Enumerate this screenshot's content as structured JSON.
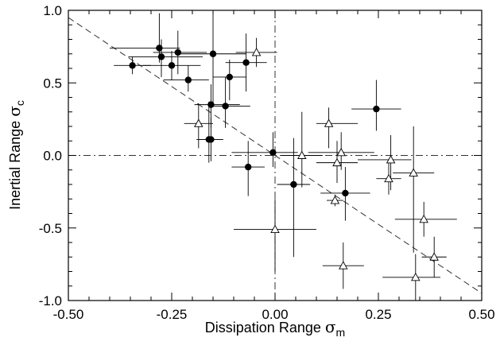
{
  "chart_data": {
    "type": "scatter",
    "title": "",
    "xlabel": "Dissipation Range",
    "xlabel_symbol": "σ",
    "xlabel_subscript": "m",
    "ylabel": "Inertial Range",
    "ylabel_symbol": "σ",
    "ylabel_subscript": "c",
    "xlim": [
      -0.5,
      0.5
    ],
    "ylim": [
      -1.0,
      1.0
    ],
    "xticks": [
      -0.5,
      -0.25,
      0.0,
      0.25,
      0.5
    ],
    "xtick_labels": [
      "-0.50",
      "-0.25",
      "0.00",
      "0.25",
      "0.50"
    ],
    "yticks": [
      -1.0,
      -0.5,
      0.0,
      0.5,
      1.0
    ],
    "ytick_labels": [
      "-1.0",
      "-0.5",
      "0.0",
      "0.5",
      "1.0"
    ],
    "grid": false,
    "reference_lines": [
      {
        "type": "vertical",
        "x": 0.0,
        "style": "dash-dot"
      },
      {
        "type": "horizontal",
        "y": 0.0,
        "style": "dash-dot"
      },
      {
        "type": "diagonal",
        "slope": -1.9,
        "intercept": 0.0,
        "style": "dashed"
      }
    ],
    "series": [
      {
        "marker": "filled-circle",
        "points": [
          {
            "x": -0.345,
            "y": 0.62,
            "xerr": [
              0.045,
              0.045
            ],
            "yerr": [
              0.06,
              0.06
            ]
          },
          {
            "x": -0.28,
            "y": 0.74,
            "xerr": [
              0.12,
              0.05
            ],
            "yerr": [
              0.1,
              0.24
            ]
          },
          {
            "x": -0.275,
            "y": 0.68,
            "xerr": [
              0.08,
              0.1
            ],
            "yerr": [
              0.14,
              0.12
            ]
          },
          {
            "x": -0.25,
            "y": 0.62,
            "xerr": [
              0.07,
              0.07
            ],
            "yerr": [
              0.1,
              0.1
            ]
          },
          {
            "x": -0.235,
            "y": 0.71,
            "xerr": [
              0.06,
              0.07
            ],
            "yerr": [
              0.15,
              0.15
            ]
          },
          {
            "x": -0.21,
            "y": 0.52,
            "xerr": [
              0.06,
              0.05
            ],
            "yerr": [
              0.08,
              0.1
            ]
          },
          {
            "x": -0.15,
            "y": 0.7,
            "xerr": [
              0.08,
              0.08
            ],
            "yerr": [
              0.35,
              0.3
            ]
          },
          {
            "x": -0.11,
            "y": 0.54,
            "xerr": [
              0.04,
              0.04
            ],
            "yerr": [
              0.16,
              0.12
            ]
          },
          {
            "x": -0.07,
            "y": 0.64,
            "xerr": [
              0.05,
              0.05
            ],
            "yerr": [
              0.2,
              0.2
            ]
          },
          {
            "x": -0.155,
            "y": 0.35,
            "xerr": [
              0.04,
              0.07
            ],
            "yerr": [
              0.16,
              0.14
            ]
          },
          {
            "x": -0.12,
            "y": 0.34,
            "xerr": [
              0.04,
              0.06
            ],
            "yerr": [
              0.15,
              0.2
            ]
          },
          {
            "x": -0.155,
            "y": 0.11,
            "xerr": [
              0.03,
              0.03
            ],
            "yerr": [
              0.15,
              0.15
            ]
          },
          {
            "x": -0.16,
            "y": 0.11,
            "xerr": [
              0.03,
              0.03
            ],
            "yerr": [
              0.16,
              0.26
            ]
          },
          {
            "x": -0.065,
            "y": -0.08,
            "xerr": [
              0.04,
              0.04
            ],
            "yerr": [
              0.2,
              0.18
            ]
          },
          {
            "x": -0.005,
            "y": 0.02,
            "xerr": [
              0.1,
              0.06
            ],
            "yerr": [
              0.1,
              0.14
            ]
          },
          {
            "x": 0.045,
            "y": -0.2,
            "xerr": [
              0.04,
              0.04
            ],
            "yerr": [
              0.5,
              0.32
            ]
          },
          {
            "x": 0.17,
            "y": -0.26,
            "xerr": [
              0.06,
              0.06
            ],
            "yerr": [
              0.19,
              0.18
            ]
          },
          {
            "x": 0.245,
            "y": 0.32,
            "xerr": [
              0.06,
              0.06
            ],
            "yerr": [
              0.15,
              0.2
            ]
          }
        ]
      },
      {
        "marker": "open-triangle",
        "points": [
          {
            "x": -0.045,
            "y": 0.71,
            "xerr": [
              0.05,
              0.05
            ],
            "yerr": [
              0.1,
              0.1
            ]
          },
          {
            "x": -0.185,
            "y": 0.22,
            "xerr": [
              0.035,
              0.035
            ],
            "yerr": [
              0.17,
              0.14
            ]
          },
          {
            "x": 0.0,
            "y": -0.51,
            "xerr": [
              0.1,
              0.1
            ],
            "yerr": [
              0.29,
              0.21
            ]
          },
          {
            "x": 0.065,
            "y": 0.0,
            "xerr": [
              0.05,
              0.05
            ],
            "yerr": [
              0.22,
              0.3
            ]
          },
          {
            "x": 0.13,
            "y": 0.22,
            "xerr": [
              0.03,
              0.07
            ],
            "yerr": [
              0.17,
              0.11
            ]
          },
          {
            "x": 0.15,
            "y": -0.05,
            "xerr": [
              0.05,
              0.05
            ],
            "yerr": [
              0.14,
              0.15
            ]
          },
          {
            "x": 0.16,
            "y": 0.02,
            "xerr": [
              0.08,
              0.08
            ],
            "yerr": [
              0.12,
              0.14
            ]
          },
          {
            "x": 0.145,
            "y": -0.31,
            "xerr": [
              0.02,
              0.02
            ],
            "yerr": [
              0.04,
              0.04
            ]
          },
          {
            "x": 0.165,
            "y": -0.76,
            "xerr": [
              0.05,
              0.05
            ],
            "yerr": [
              0.16,
              0.16
            ]
          },
          {
            "x": 0.28,
            "y": -0.03,
            "xerr": [
              0.08,
              0.05
            ],
            "yerr": [
              0.21,
              0.17
            ]
          },
          {
            "x": 0.275,
            "y": -0.16,
            "xerr": [
              0.03,
              0.03
            ],
            "yerr": [
              0.11,
              0.12
            ]
          },
          {
            "x": 0.335,
            "y": -0.12,
            "xerr": [
              0.05,
              0.05
            ],
            "yerr": [
              0.55,
              0.32
            ]
          },
          {
            "x": 0.36,
            "y": -0.44,
            "xerr": [
              0.07,
              0.08
            ],
            "yerr": [
              0.12,
              0.12
            ]
          },
          {
            "x": 0.34,
            "y": -0.84,
            "xerr": [
              0.08,
              0.06
            ],
            "yerr": [
              0.18,
              0.16
            ]
          },
          {
            "x": 0.385,
            "y": -0.7,
            "xerr": [
              0.03,
              0.03
            ],
            "yerr": [
              0.14,
              0.14
            ]
          }
        ]
      }
    ]
  }
}
